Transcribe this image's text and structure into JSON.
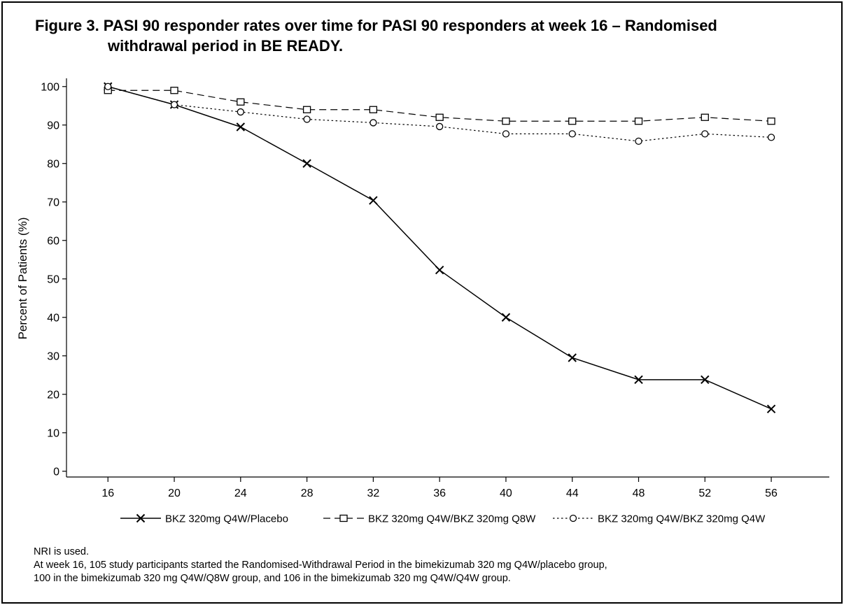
{
  "chart_data": {
    "type": "line",
    "title_line1": "Figure 3. PASI 90 responder rates over time for PASI 90 responders at week 16 – Randomised",
    "title_line2": "withdrawal period in BE READY.",
    "xlabel": "",
    "ylabel": "Percent of Patients (%)",
    "x": [
      16,
      20,
      24,
      28,
      32,
      36,
      40,
      44,
      48,
      52,
      56
    ],
    "xlim": [
      13.5,
      59.5
    ],
    "ylim": [
      -1.5,
      102.5
    ],
    "yticks": [
      0,
      10,
      20,
      30,
      40,
      50,
      60,
      70,
      80,
      90,
      100
    ],
    "grid": false,
    "legend_position": "bottom",
    "series": [
      {
        "name": "BKZ 320mg Q4W/Placebo",
        "marker": "x",
        "dash": "solid",
        "values": [
          100,
          95.3,
          89.5,
          80,
          70.4,
          52.3,
          40,
          29.5,
          23.8,
          23.8,
          16.2
        ]
      },
      {
        "name": "BKZ 320mg Q4W/BKZ 320mg Q8W",
        "marker": "square",
        "dash": "dashed",
        "values": [
          99,
          99,
          96,
          94,
          94,
          92,
          91,
          91,
          91,
          92,
          91
        ]
      },
      {
        "name": "BKZ 320mg Q4W/BKZ 320mg Q4W",
        "marker": "circle",
        "dash": "dotted",
        "values": [
          100,
          95.3,
          93.4,
          91.5,
          90.6,
          89.6,
          87.7,
          87.7,
          85.8,
          87.7,
          86.8
        ]
      }
    ]
  },
  "footnotes": [
    "NRI is used.",
    "At week 16, 105 study participants started the Randomised-Withdrawal Period in the bimekizumab 320 mg Q4W/placebo group,",
    "100 in the bimekizumab 320 mg Q4W/Q8W group, and 106 in the bimekizumab 320 mg Q4W/Q4W group."
  ]
}
